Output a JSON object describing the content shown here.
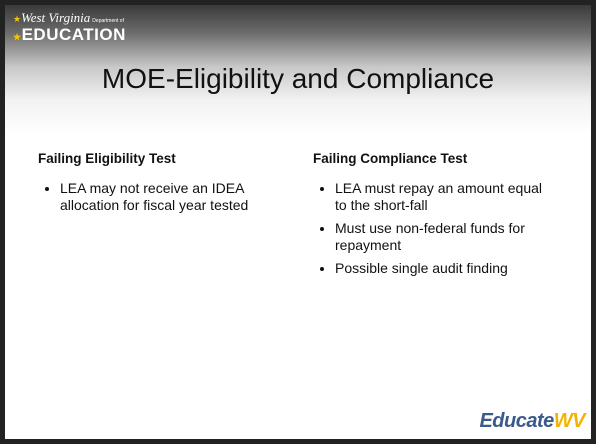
{
  "header": {
    "logo_script": "West Virginia",
    "logo_small": "Department of",
    "logo_main": "EDUCATION"
  },
  "title": "MOE-Eligibility and Compliance",
  "columns": [
    {
      "heading": "Failing Eligibility Test",
      "bullets": [
        "LEA may not receive an IDEA allocation for fiscal year tested"
      ]
    },
    {
      "heading": "Failing Compliance Test",
      "bullets": [
        "LEA must repay an amount equal to the short-fall",
        "Must use non-federal funds for repayment",
        "Possible single audit finding"
      ]
    }
  ],
  "footer_logo": {
    "part1": "Educate",
    "part2": "WV"
  }
}
